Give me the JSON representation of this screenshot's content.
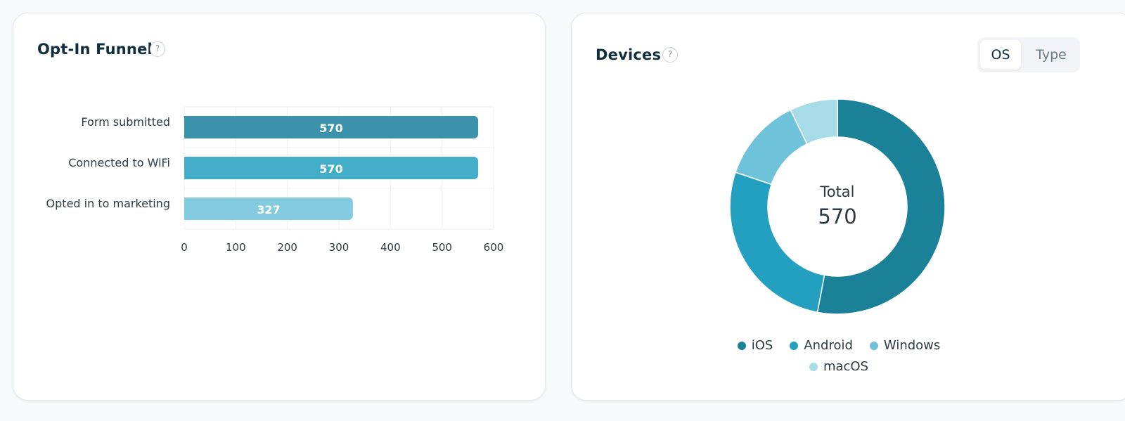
{
  "funnel": {
    "title": "Opt-In Funnel",
    "help": "?",
    "chart_data": {
      "type": "bar",
      "orientation": "horizontal",
      "categories": [
        "Form submitted",
        "Connected to WiFi",
        "Opted in to marketing"
      ],
      "values": [
        570,
        570,
        327
      ],
      "value_labels": [
        "570",
        "570",
        "327"
      ],
      "xlim": [
        0,
        600
      ],
      "xticks": [
        0,
        100,
        200,
        300,
        400,
        500,
        600
      ],
      "colors": [
        "#3a93aa",
        "#44aec9",
        "#84cbe0"
      ],
      "grid": true
    }
  },
  "devices": {
    "title": "Devices",
    "help": "?",
    "toggle": {
      "os_label": "OS",
      "type_label": "Type",
      "selected": "OS"
    },
    "chart_data": {
      "type": "pie",
      "donut": true,
      "center_label": "Total",
      "center_value": "570",
      "slices": [
        {
          "name": "iOS",
          "value": 302,
          "color": "#1b8199"
        },
        {
          "name": "Android",
          "value": 155,
          "color": "#23a0bf"
        },
        {
          "name": "Windows",
          "value": 72,
          "color": "#6ec3da"
        },
        {
          "name": "macOS",
          "value": 41,
          "color": "#a6dbe8"
        }
      ],
      "legend_position": "bottom"
    }
  }
}
